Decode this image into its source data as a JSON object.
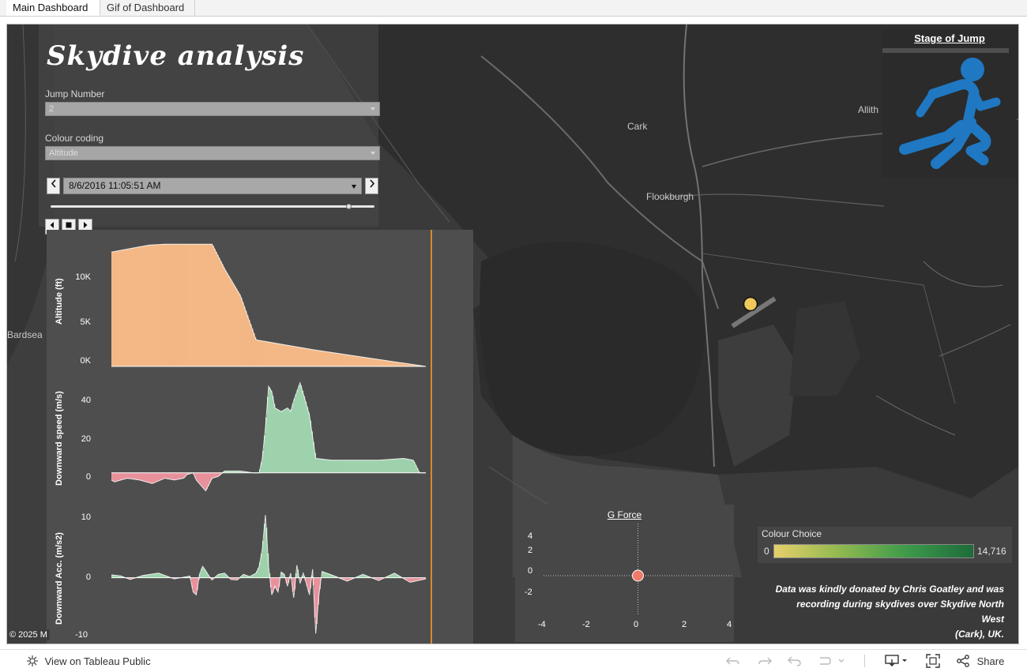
{
  "tabs": [
    {
      "label": "Main Dashboard",
      "active": true
    },
    {
      "label": "Gif of Dashboard",
      "active": false
    }
  ],
  "dashboard": {
    "title": "Skydive  analysis",
    "jump_number": {
      "label": "Jump Number",
      "value": "2"
    },
    "colour_coding": {
      "label": "Colour coding",
      "value": "Altitude"
    },
    "date_selector": {
      "value": "8/6/2016 11:05:51 AM",
      "prev_icon": "chevron-left-icon",
      "next_icon": "chevron-right-icon"
    },
    "slider_position": 0.92,
    "playback": {
      "buttons": [
        "step-back-icon",
        "stop-icon",
        "step-forward-icon"
      ]
    }
  },
  "map": {
    "labels": [
      "Cark",
      "Flookburgh",
      "Allith",
      "Bardsea"
    ],
    "copyright": "© 2025 M",
    "colors": {
      "background": "#3c3c3c",
      "land": "#2f2f2f",
      "water": "#4f4f4f",
      "roads": "#6e6e6e",
      "current_position": "#f0c95a"
    }
  },
  "stage_of_jump": {
    "title": "Stage of Jump",
    "icon": "running-person-icon",
    "icon_color": "#1f78c1"
  },
  "chart_data": [
    {
      "type": "area",
      "ylabel": "Altitude (ft)",
      "ylim": [
        0,
        14000
      ],
      "ytick_labels": [
        "0K",
        "5K",
        "10K"
      ],
      "color": "#f4b886",
      "x": [
        0,
        6,
        12,
        17,
        20,
        25,
        32,
        36,
        41,
        46,
        64,
        77,
        100
      ],
      "y": [
        12900,
        13300,
        13700,
        13800,
        13800,
        13800,
        13800,
        11000,
        8000,
        3000,
        1900,
        1200,
        0
      ]
    },
    {
      "type": "area",
      "ylabel": "Downward speed (m/s)",
      "ylim": [
        -8,
        56
      ],
      "ytick_labels": [
        "0",
        "20",
        "40"
      ],
      "colors": {
        "positive": "#9ed2ac",
        "negative": "#e8919b"
      },
      "x": [
        0,
        1,
        5,
        9,
        13,
        17,
        20,
        23,
        24,
        26,
        27,
        30,
        32,
        34,
        36,
        38,
        40,
        41,
        45,
        47,
        48,
        49,
        50,
        51,
        52,
        54,
        56,
        57,
        58,
        60,
        62,
        63,
        65,
        70,
        78,
        85,
        93,
        96,
        98,
        100
      ],
      "y": [
        -4,
        -5,
        -3,
        -4,
        -6,
        -3,
        -4,
        -3,
        -1,
        0,
        -4,
        -10,
        -3,
        -2,
        1,
        1,
        1,
        1,
        0,
        0,
        8,
        25,
        48,
        45,
        36,
        34,
        36,
        34,
        40,
        50,
        38,
        32,
        8,
        7,
        7,
        7,
        8,
        7,
        0,
        0
      ]
    },
    {
      "type": "area",
      "ylabel": "Downward Acc. (m/s2)",
      "ylim": [
        -11,
        12
      ],
      "ytick_labels": [
        "-10",
        "0",
        "10"
      ],
      "colors": {
        "positive": "#9ed2ac",
        "negative": "#e8919b"
      },
      "x": [
        0,
        3,
        6,
        10,
        15,
        20,
        25,
        26,
        27,
        28,
        29,
        30,
        31,
        32,
        34,
        36,
        38,
        40,
        42,
        44,
        46,
        47,
        48,
        49,
        50,
        51,
        52,
        53,
        54,
        55,
        56,
        57,
        58,
        59,
        60,
        61,
        62,
        63,
        64,
        65,
        66,
        67,
        70,
        75,
        80,
        85,
        90,
        95,
        100
      ],
      "y": [
        0.5,
        0.3,
        -0.3,
        0.4,
        0.8,
        -0.2,
        0.3,
        -2.5,
        -3,
        0.5,
        2.0,
        1.2,
        0.3,
        -0.4,
        0.6,
        0.8,
        -0.3,
        -0.4,
        0.6,
        0.2,
        0.8,
        2,
        5,
        11,
        2,
        -3,
        -1.5,
        -2.5,
        1,
        0.6,
        -1.5,
        0.8,
        -3.5,
        2.2,
        -1,
        0.8,
        -1,
        -3,
        1.5,
        -9.8,
        -3,
        1.1,
        0.5,
        -0.6,
        0.6,
        -0.5,
        0.8,
        -0.8,
        -0.2
      ]
    },
    {
      "type": "scatter",
      "title": "G Force",
      "xlim": [
        -4,
        4
      ],
      "ylim": [
        -4,
        4
      ],
      "xtick_labels": [
        "-4",
        "-2",
        "0",
        "2",
        "4"
      ],
      "ytick_labels": [
        "4",
        "2",
        "0",
        "-2"
      ],
      "points": [
        {
          "x": 0,
          "y": 0
        }
      ],
      "color": "#f07a6a"
    }
  ],
  "legend": {
    "title": "Colour Choice",
    "min": "0",
    "max": "14,716"
  },
  "credit": [
    "Data was kindly donated by Chris Goatley and was",
    "recording during skydives over Skydive North West",
    "(Cark), UK."
  ],
  "footer": {
    "view_label": "View on Tableau Public",
    "share_label": "Share",
    "icons": [
      "undo-icon",
      "redo-icon",
      "revert-icon",
      "pause-updates-icon",
      "download-icon",
      "fullscreen-icon",
      "share-icon"
    ]
  }
}
